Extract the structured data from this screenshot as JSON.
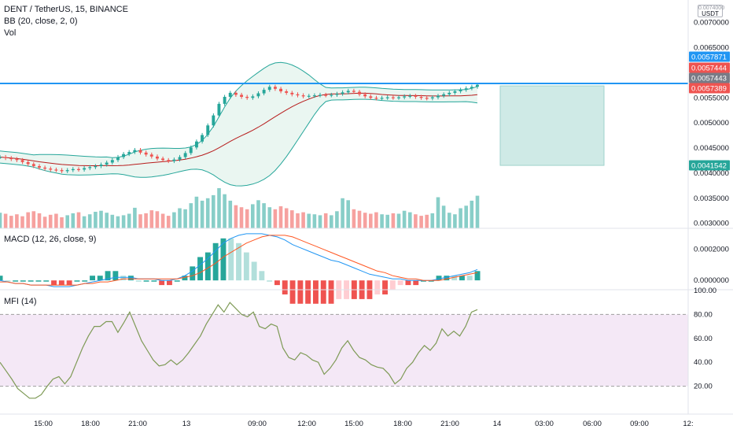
{
  "header": {
    "symbol": "DENT / TetherUS, 15, BINANCE",
    "indicator_bb": "BB (20, close, 2, 0)",
    "indicator_vol": "Vol",
    "macd_label": "MACD (12, 26, close, 9)",
    "mfi_label": "MFI (14)"
  },
  "currency": {
    "line1": "0.0074000",
    "line2": "USDT"
  },
  "colors": {
    "up": "#26a69a",
    "down": "#ef5350",
    "bb_fill": "#e8f5f0",
    "bb_band": "#26a69a",
    "bb_basis": "#b71c1c",
    "hline": "#2196f3",
    "macd_line": "#2196f3",
    "signal_line": "#ff5722",
    "mfi_line": "#7e9a56",
    "mfi_band": "#f3e5f5",
    "position_box": "#a7d8d2"
  },
  "chart_data": [
    {
      "type": "candlestick",
      "title": "DENT / TetherUS, 15, BINANCE",
      "y_ticks": [
        0.007,
        0.0065,
        0.0055,
        0.005,
        0.0045,
        0.004,
        0.0035,
        0.003
      ],
      "y_tick_labels": [
        "0.0070000",
        "0.0065000",
        "0.0055000",
        "0.0050000",
        "0.0045000",
        "0.0040000",
        "0.0035000",
        "0.0030000"
      ],
      "x_ticks": [
        "15:00",
        "18:00",
        "21:00",
        "13",
        "09:00",
        "12:00",
        "15:00",
        "18:00",
        "21:00",
        "14",
        "03:00",
        "06:00",
        "09:00",
        "12:"
      ],
      "price_tags": [
        {
          "label": "0.0057871",
          "value": 0.0057871,
          "color": "#2196f3"
        },
        {
          "label": "0.0057444",
          "value": 0.0057444,
          "color": "#ef5350"
        },
        {
          "label": "0.0057443",
          "value": 0.0057443,
          "color": "#787b86"
        },
        {
          "label": "0.0057389",
          "value": 0.0057389,
          "color": "#ef5350"
        },
        {
          "label": "0.0041542",
          "value": 0.0041542,
          "color": "#26a69a"
        }
      ],
      "horizontal_line": 0.0057871,
      "position_zone": {
        "top": 0.0057389,
        "bottom": 0.0041542
      },
      "price_path": [
        0.00432,
        0.0043,
        0.00428,
        0.00426,
        0.00422,
        0.00418,
        0.00414,
        0.00411,
        0.00409,
        0.00407,
        0.00406,
        0.00404,
        0.00406,
        0.00408,
        0.00407,
        0.0041,
        0.00412,
        0.00414,
        0.00417,
        0.00421,
        0.00426,
        0.00432,
        0.00438,
        0.00442,
        0.00446,
        0.00441,
        0.00437,
        0.00433,
        0.00429,
        0.00426,
        0.00424,
        0.00427,
        0.00432,
        0.0044,
        0.00451,
        0.00463,
        0.00476,
        0.00495,
        0.00515,
        0.00538,
        0.00552,
        0.0056,
        0.00556,
        0.00552,
        0.0055,
        0.00553,
        0.00559,
        0.00566,
        0.00572,
        0.00568,
        0.00563,
        0.0056,
        0.00557,
        0.00555,
        0.00553,
        0.00554,
        0.00555,
        0.00556,
        0.00555,
        0.00556,
        0.00558,
        0.00561,
        0.00564,
        0.00562,
        0.00557,
        0.00553,
        0.0055,
        0.00549,
        0.0055,
        0.00551,
        0.0055,
        0.00551,
        0.00553,
        0.00554,
        0.00552,
        0.0055,
        0.00549,
        0.00551,
        0.00554,
        0.00557,
        0.0056,
        0.00563,
        0.00566,
        0.00569,
        0.00572,
        0.00576
      ],
      "volume_path": [
        0.00321,
        0.00319,
        0.00315,
        0.00318,
        0.00314,
        0.00322,
        0.00324,
        0.0032,
        0.00313,
        0.00317,
        0.00319,
        0.00312,
        0.00316,
        0.0032,
        0.00322,
        0.00314,
        0.00318,
        0.00323,
        0.00325,
        0.00321,
        0.00317,
        0.00314,
        0.00316,
        0.00319,
        0.00331,
        0.00318,
        0.0032,
        0.00326,
        0.00324,
        0.00319,
        0.00315,
        0.00322,
        0.0033,
        0.00328,
        0.0034,
        0.00353,
        0.00345,
        0.0035,
        0.00356,
        0.0037,
        0.00358,
        0.00345,
        0.00336,
        0.00332,
        0.00328,
        0.00338,
        0.00346,
        0.0034,
        0.00332,
        0.00328,
        0.00334,
        0.0033,
        0.00326,
        0.0032,
        0.00322,
        0.00319,
        0.00318,
        0.00316,
        0.0032,
        0.00316,
        0.00324,
        0.0035,
        0.00346,
        0.00328,
        0.00325,
        0.00321,
        0.00319,
        0.00322,
        0.00318,
        0.00317,
        0.0032,
        0.00319,
        0.00325,
        0.00322,
        0.00318,
        0.00315,
        0.00317,
        0.0032,
        0.00352,
        0.00335,
        0.00321,
        0.00318,
        0.0033,
        0.00335,
        0.00345,
        0.00355
      ]
    },
    {
      "type": "line",
      "title": "MACD (12, 26, close, 9)",
      "y_ticks": [
        0.0002,
        0.0
      ],
      "y_tick_labels": [
        "0.0002000",
        "0.0000000"
      ],
      "macd": [
        0.0,
        -1e-05,
        -2e-05,
        -2e-05,
        -3e-05,
        -3e-05,
        -3e-05,
        -4e-05,
        -4e-05,
        -4e-05,
        -3e-05,
        -2e-05,
        -1e-05,
        0.0,
        1e-05,
        2e-05,
        2e-05,
        2e-05,
        1e-05,
        1e-05,
        1e-05,
        0.0,
        0.0,
        1e-05,
        3e-05,
        6e-05,
        0.0001,
        0.00014,
        0.00019,
        0.00024,
        0.00027,
        0.00029,
        0.0003,
        0.0003,
        0.0003,
        0.00029,
        0.00028,
        0.00026,
        0.00023,
        0.00021,
        0.00019,
        0.00017,
        0.00015,
        0.00013,
        0.00012,
        0.0001,
        8e-05,
        6e-05,
        4e-05,
        3e-05,
        2e-05,
        1e-05,
        1e-05,
        0.0,
        0.0,
        0.0,
        0.0,
        1e-05,
        2e-05,
        3e-05,
        4e-05,
        5e-05,
        7e-05
      ],
      "signal": [
        -1e-05,
        -1e-05,
        -2e-05,
        -2e-05,
        -3e-05,
        -3e-05,
        -3e-05,
        -3e-05,
        -3e-05,
        -3e-05,
        -3e-05,
        -2e-05,
        -2e-05,
        -1e-05,
        -1e-05,
        0.0,
        1e-05,
        1e-05,
        1e-05,
        1e-05,
        1e-05,
        1e-05,
        1e-05,
        1e-05,
        2e-05,
        3e-05,
        5e-05,
        8e-05,
        0.00011,
        0.00015,
        0.00018,
        0.00021,
        0.00024,
        0.00026,
        0.00028,
        0.00029,
        0.00029,
        0.00029,
        0.00028,
        0.00026,
        0.00024,
        0.00022,
        0.0002,
        0.00018,
        0.00016,
        0.00014,
        0.00012,
        0.0001,
        8e-05,
        6e-05,
        5e-05,
        3e-05,
        2e-05,
        1e-05,
        1e-05,
        0.0,
        0.0,
        0.0,
        1e-05,
        2e-05,
        3e-05,
        4e-05,
        5e-05
      ]
    },
    {
      "type": "line",
      "title": "MFI (14)",
      "y_ticks": [
        100,
        80,
        60,
        40,
        20
      ],
      "y_tick_labels": [
        "100.00",
        "80.00",
        "60.00",
        "40.00",
        "20.00"
      ],
      "band": [
        20,
        80
      ],
      "values": [
        40,
        33,
        26,
        18,
        14,
        10,
        10,
        13,
        20,
        26,
        28,
        22,
        28,
        40,
        52,
        62,
        70,
        70,
        74,
        74,
        65,
        73,
        82,
        70,
        58,
        50,
        42,
        37,
        38,
        42,
        38,
        42,
        48,
        55,
        62,
        72,
        80,
        88,
        82,
        90,
        85,
        80,
        78,
        82,
        70,
        68,
        72,
        70,
        52,
        44,
        42,
        48,
        46,
        42,
        40,
        30,
        35,
        42,
        52,
        58,
        50,
        44,
        42,
        38,
        36,
        35,
        30,
        22,
        26,
        35,
        40,
        48,
        54,
        50,
        56,
        68,
        62,
        66,
        62,
        70,
        82,
        84
      ]
    }
  ]
}
